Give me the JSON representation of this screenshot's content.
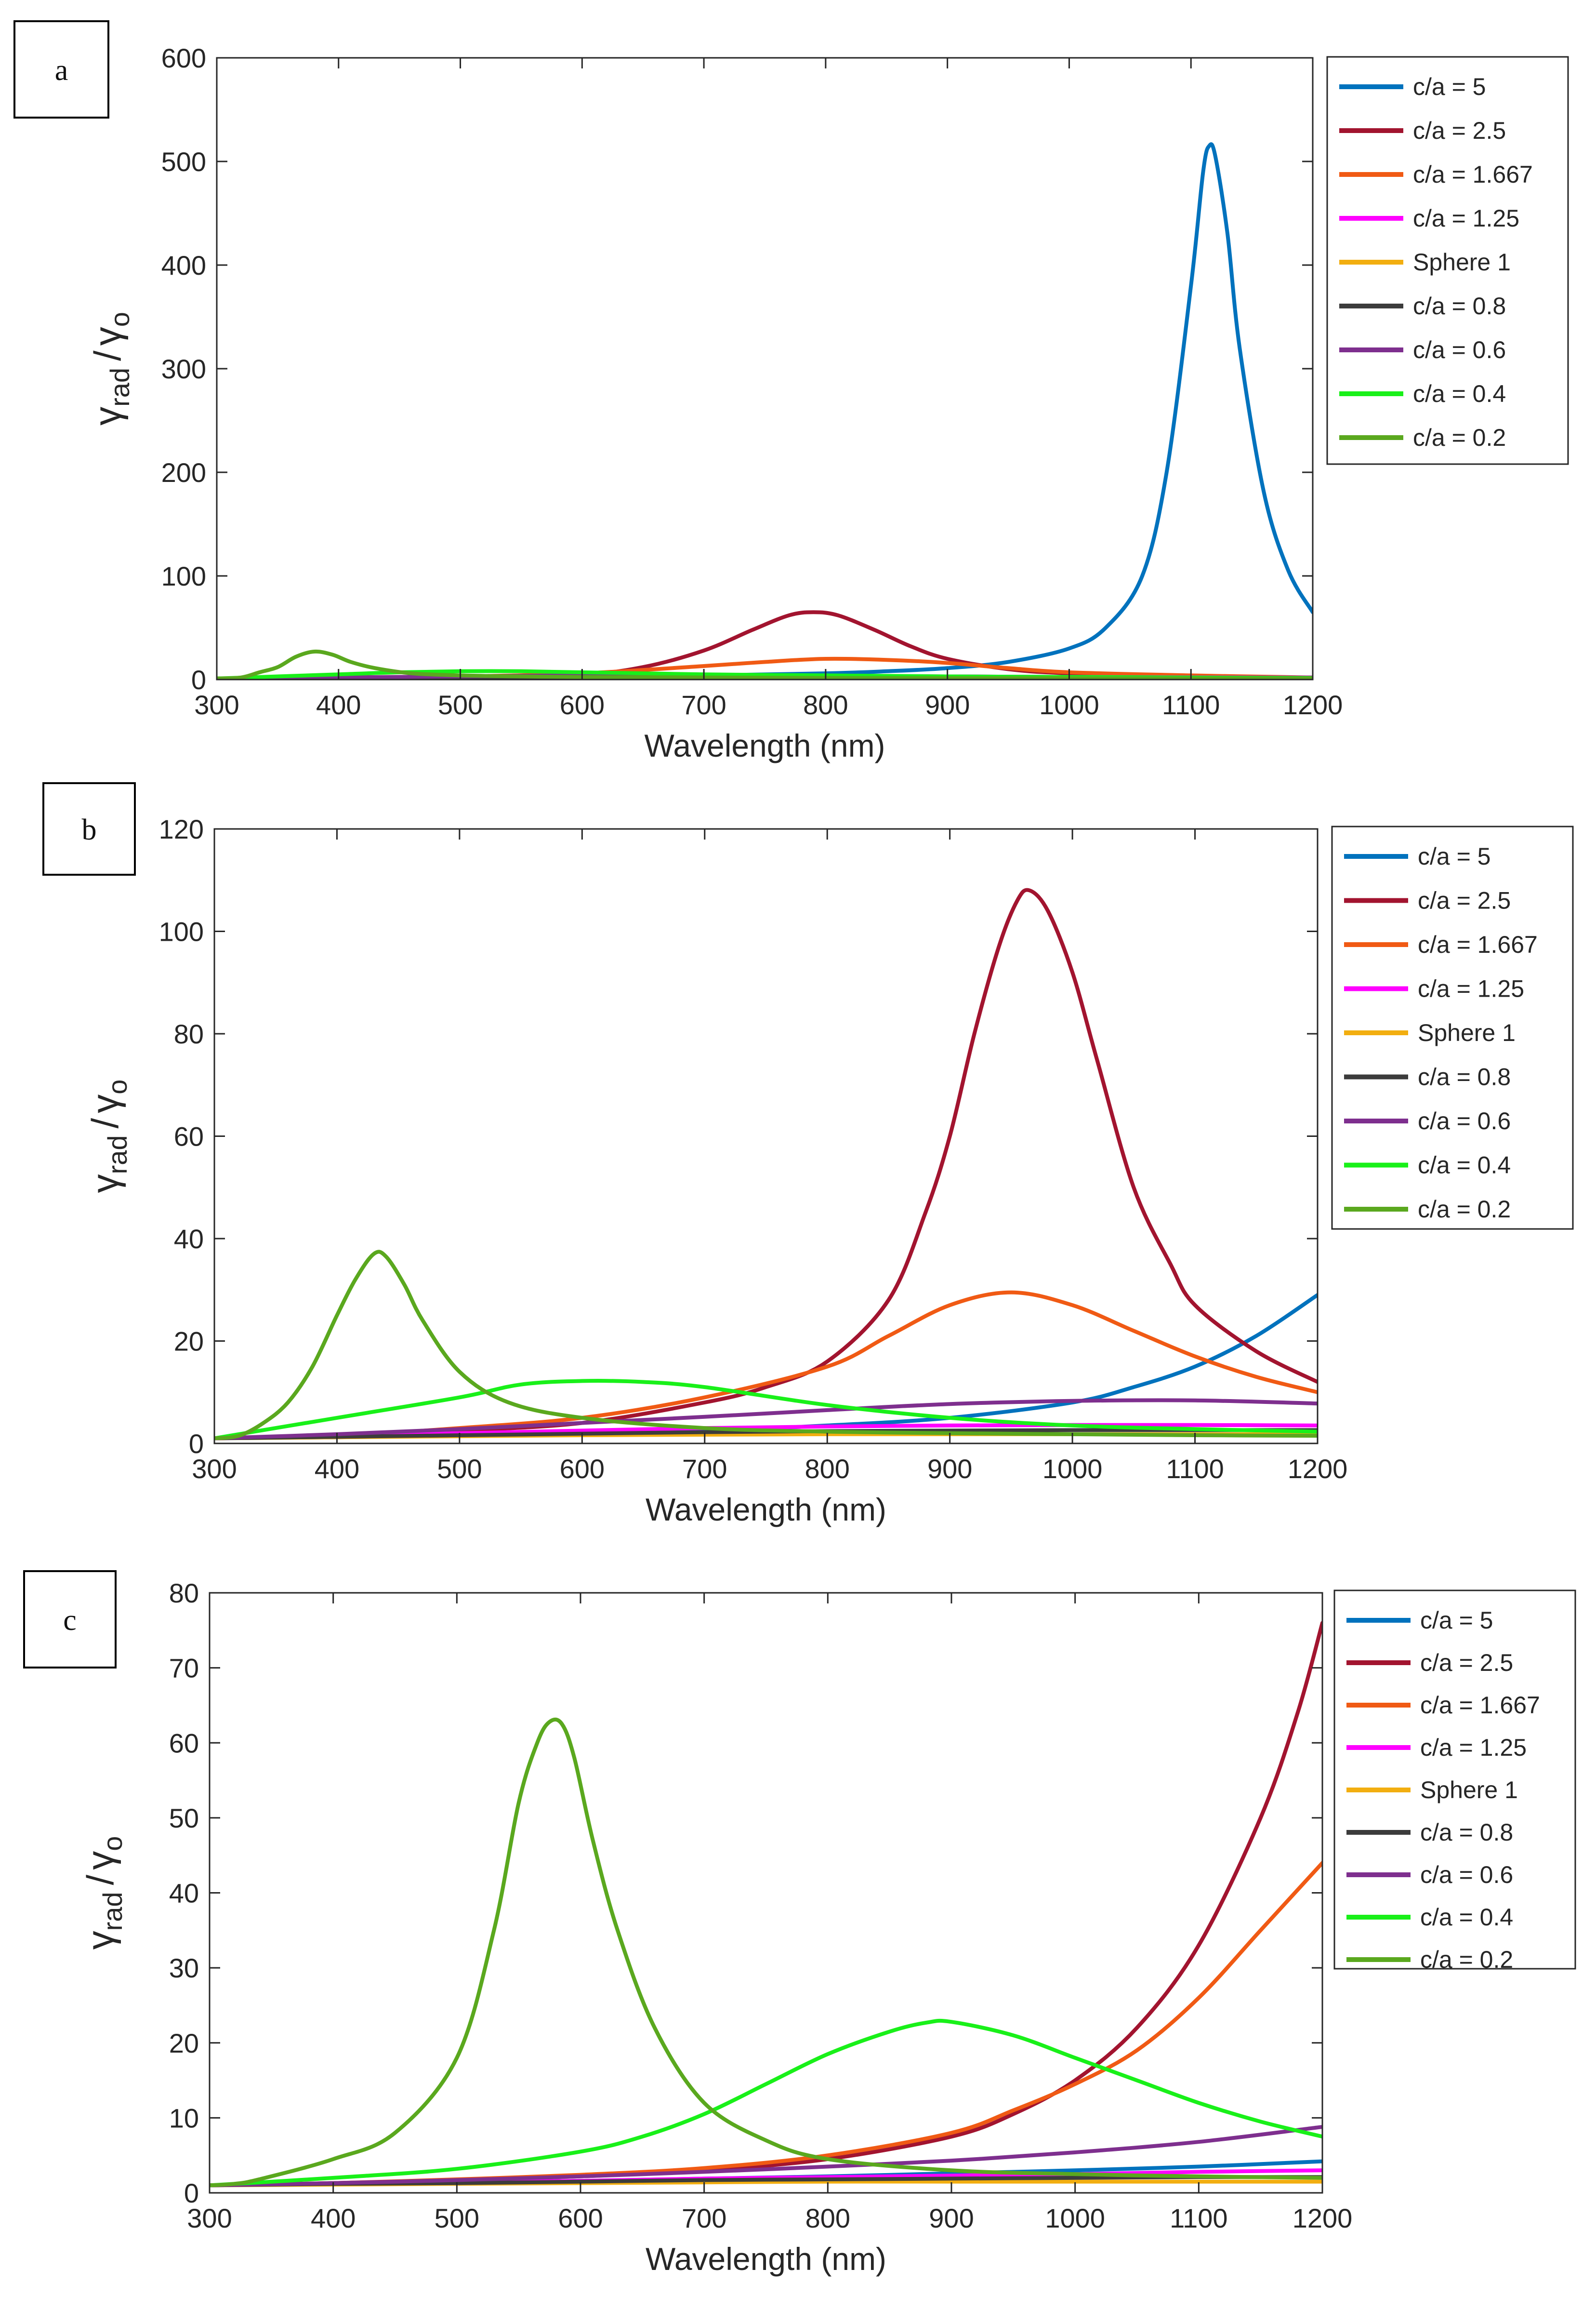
{
  "figure": {
    "colors": {
      "c/a = 5": "#0072BD",
      "c/a = 2.5": "#A2142F",
      "c/a = 1.667": "#F05A14",
      "c/a = 1.25": "#FF00FF",
      "Sphere 1": "#F2AE10",
      "c/a = 0.8": "#3C3C3C",
      "c/a = 0.6": "#7E2F8E",
      "c/a = 0.4": "#19F019",
      "c/a = 0.2": "#5AA81E"
    }
  },
  "chart_data": [
    {
      "panel": "a",
      "type": "line",
      "xlabel": "Wavelength (nm)",
      "ylabel_main": "γ",
      "ylabel_sub": "rad",
      "ylabel_slash": "/",
      "ylabel_den": "γ",
      "ylabel_den_sub": "o",
      "xlim": [
        300,
        1200
      ],
      "ylim": [
        0,
        600
      ],
      "xticks": [
        "300",
        "400",
        "500",
        "600",
        "700",
        "800",
        "900",
        "1000",
        "1100",
        "1200"
      ],
      "yticks": [
        "0",
        "100",
        "200",
        "300",
        "400",
        "500",
        "600"
      ],
      "legend": [
        "c/a = 5",
        "c/a = 2.5",
        "c/a = 1.667",
        "c/a = 1.25",
        "Sphere 1",
        "c/a = 0.8",
        "c/a = 0.6",
        "c/a = 0.4",
        "c/a = 0.2"
      ],
      "series": [
        {
          "name": "c/a = 5",
          "x": [
            300,
            400,
            500,
            600,
            700,
            800,
            850,
            900,
            950,
            1000,
            1030,
            1060,
            1080,
            1100,
            1110,
            1115,
            1120,
            1130,
            1140,
            1160,
            1180,
            1200
          ],
          "y": [
            0.5,
            1,
            1.5,
            2.5,
            4,
            6,
            8,
            11,
            17,
            30,
            50,
            100,
            200,
            380,
            490,
            515,
            505,
            430,
            320,
            180,
            105,
            65
          ]
        },
        {
          "name": "c/a = 2.5",
          "x": [
            300,
            400,
            500,
            600,
            650,
            700,
            740,
            770,
            790,
            810,
            840,
            870,
            900,
            950,
            1000,
            1100,
            1200
          ],
          "y": [
            0.5,
            1,
            2,
            5,
            12,
            28,
            48,
            62,
            65,
            62,
            48,
            32,
            20,
            10,
            6,
            3,
            2
          ]
        },
        {
          "name": "c/a = 1.667",
          "x": [
            300,
            400,
            500,
            600,
            700,
            750,
            800,
            850,
            900,
            950,
            1000,
            1100,
            1200
          ],
          "y": [
            1,
            2,
            3,
            6,
            13,
            17,
            20,
            19,
            16,
            11,
            7,
            4,
            2
          ]
        },
        {
          "name": "c/a = 1.25",
          "x": [
            300,
            400,
            500,
            600,
            700,
            800,
            900,
            1000,
            1100,
            1200
          ],
          "y": [
            1,
            2,
            2.5,
            3,
            3.5,
            3.5,
            3,
            2.5,
            2.2,
            2
          ]
        },
        {
          "name": "Sphere 1",
          "x": [
            300,
            400,
            500,
            600,
            700,
            800,
            900,
            1000,
            1100,
            1200
          ],
          "y": [
            1,
            1.5,
            1.8,
            2,
            2,
            1.8,
            1.6,
            1.5,
            1.4,
            1.3
          ]
        },
        {
          "name": "c/a = 0.8",
          "x": [
            300,
            400,
            500,
            600,
            700,
            800,
            900,
            1000,
            1100,
            1200
          ],
          "y": [
            1,
            1.5,
            2,
            2.5,
            2.5,
            2.3,
            2,
            1.8,
            1.6,
            1.5
          ]
        },
        {
          "name": "c/a = 0.6",
          "x": [
            300,
            400,
            500,
            600,
            700,
            800,
            900,
            1000,
            1100,
            1200
          ],
          "y": [
            1,
            2,
            3,
            4,
            4,
            3.5,
            3,
            2.5,
            2,
            1.8
          ]
        },
        {
          "name": "c/a = 0.4",
          "x": [
            300,
            350,
            400,
            450,
            500,
            550,
            600,
            650,
            700,
            800,
            900,
            1000,
            1100,
            1200
          ],
          "y": [
            1,
            3,
            5,
            7,
            8,
            8,
            7,
            6,
            5,
            4,
            3,
            2.5,
            2,
            1.5
          ]
        },
        {
          "name": "c/a = 0.2",
          "x": [
            300,
            320,
            335,
            350,
            365,
            380,
            395,
            410,
            430,
            460,
            500,
            550,
            600,
            700,
            800,
            900,
            1000,
            1100,
            1200
          ],
          "y": [
            1,
            2,
            7,
            12,
            22,
            27,
            24,
            17,
            11,
            6,
            4,
            3,
            2.5,
            2,
            1.5,
            1.3,
            1.2,
            1.1,
            1
          ]
        }
      ]
    },
    {
      "panel": "b",
      "type": "line",
      "xlabel": "Wavelength (nm)",
      "ylabel_main": "γ",
      "ylabel_sub": "rad",
      "ylabel_slash": "/",
      "ylabel_den": "γ",
      "ylabel_den_sub": "o",
      "xlim": [
        300,
        1200
      ],
      "ylim": [
        0,
        120
      ],
      "xticks": [
        "300",
        "400",
        "500",
        "600",
        "700",
        "800",
        "900",
        "1000",
        "1100",
        "1200"
      ],
      "yticks": [
        "0",
        "20",
        "40",
        "60",
        "80",
        "100",
        "120"
      ],
      "legend": [
        "c/a = 5",
        "c/a = 2.5",
        "c/a = 1.667",
        "c/a = 1.25",
        "Sphere 1",
        "c/a = 0.8",
        "c/a = 0.6",
        "c/a = 0.4",
        "c/a = 0.2"
      ],
      "series": [
        {
          "name": "c/a = 5",
          "x": [
            300,
            400,
            500,
            600,
            700,
            800,
            900,
            1000,
            1050,
            1100,
            1150,
            1200
          ],
          "y": [
            1,
            1.2,
            1.5,
            2,
            2.5,
            3.5,
            5,
            8,
            11,
            15,
            21,
            29
          ]
        },
        {
          "name": "c/a = 2.5",
          "x": [
            300,
            400,
            500,
            600,
            700,
            750,
            800,
            850,
            880,
            900,
            920,
            940,
            955,
            965,
            980,
            1000,
            1020,
            1050,
            1080,
            1100,
            1150,
            1200
          ],
          "y": [
            1,
            1.5,
            2.5,
            4,
            8,
            11,
            16,
            28,
            45,
            60,
            80,
            97,
            106,
            108,
            104,
            92,
            75,
            50,
            35,
            27,
            18,
            12
          ]
        },
        {
          "name": "c/a = 1.667",
          "x": [
            300,
            400,
            500,
            600,
            700,
            800,
            850,
            900,
            950,
            1000,
            1050,
            1100,
            1150,
            1200
          ],
          "y": [
            1,
            1.5,
            3,
            5,
            9,
            15,
            21,
            27,
            29.5,
            27,
            22,
            17,
            13,
            10
          ]
        },
        {
          "name": "c/a = 1.25",
          "x": [
            300,
            400,
            500,
            600,
            700,
            800,
            900,
            1000,
            1100,
            1200
          ],
          "y": [
            1,
            1.5,
            2,
            2.5,
            3,
            3.3,
            3.5,
            3.6,
            3.6,
            3.5
          ]
        },
        {
          "name": "Sphere 1",
          "x": [
            300,
            400,
            500,
            600,
            700,
            800,
            900,
            1000,
            1100,
            1200
          ],
          "y": [
            1,
            1.2,
            1.4,
            1.6,
            1.7,
            1.8,
            1.8,
            1.8,
            1.8,
            1.8
          ]
        },
        {
          "name": "c/a = 0.8",
          "x": [
            300,
            400,
            500,
            600,
            700,
            800,
            900,
            1000,
            1100,
            1200
          ],
          "y": [
            1,
            1.3,
            1.6,
            1.9,
            2.2,
            2.4,
            2.5,
            2.6,
            2.6,
            2.6
          ]
        },
        {
          "name": "c/a = 0.6",
          "x": [
            300,
            400,
            500,
            600,
            700,
            800,
            900,
            1000,
            1100,
            1200
          ],
          "y": [
            1,
            1.8,
            2.8,
            4,
            5.2,
            6.5,
            7.7,
            8.3,
            8.4,
            7.8
          ]
        },
        {
          "name": "c/a = 0.4",
          "x": [
            300,
            400,
            500,
            550,
            600,
            650,
            700,
            800,
            900,
            1000,
            1100,
            1200
          ],
          "y": [
            1,
            5,
            9,
            11.5,
            12.2,
            12,
            11,
            7.5,
            5,
            3.5,
            2.8,
            2.3
          ]
        },
        {
          "name": "c/a = 0.2",
          "x": [
            300,
            320,
            340,
            360,
            380,
            400,
            415,
            430,
            440,
            455,
            470,
            500,
            540,
            600,
            700,
            800,
            900,
            1000,
            1100,
            1200
          ],
          "y": [
            1,
            1.5,
            4,
            8,
            15,
            25,
            32,
            37,
            36.5,
            31,
            24,
            14,
            8,
            5,
            3,
            2.3,
            2,
            1.8,
            1.6,
            1.5
          ]
        }
      ]
    },
    {
      "panel": "c",
      "type": "line",
      "xlabel": "Wavelength (nm)",
      "ylabel_main": "γ",
      "ylabel_sub": "rad",
      "ylabel_slash": "/",
      "ylabel_den": "γ",
      "ylabel_den_sub": "o",
      "xlim": [
        300,
        1200
      ],
      "ylim": [
        0,
        80
      ],
      "xticks": [
        "300",
        "400",
        "500",
        "600",
        "700",
        "800",
        "900",
        "1000",
        "1100",
        "1200"
      ],
      "yticks": [
        "0",
        "10",
        "20",
        "30",
        "40",
        "50",
        "60",
        "70",
        "80"
      ],
      "legend": [
        "c/a = 5",
        "c/a = 2.5",
        "c/a = 1.667",
        "c/a = 1.25",
        "Sphere 1",
        "c/a = 0.8",
        "c/a = 0.6",
        "c/a = 0.4",
        "c/a = 0.2"
      ],
      "series": [
        {
          "name": "c/a = 5",
          "x": [
            300,
            400,
            500,
            600,
            700,
            800,
            900,
            1000,
            1100,
            1200
          ],
          "y": [
            1,
            1.2,
            1.4,
            1.6,
            1.9,
            2.2,
            2.6,
            3,
            3.5,
            4.2
          ]
        },
        {
          "name": "c/a = 2.5",
          "x": [
            300,
            400,
            500,
            600,
            700,
            800,
            900,
            950,
            1000,
            1050,
            1100,
            1150,
            1180,
            1200
          ],
          "y": [
            1,
            1.3,
            1.7,
            2.2,
            3,
            4.5,
            7.5,
            10.5,
            15,
            22,
            33,
            50,
            64,
            76
          ]
        },
        {
          "name": "c/a = 1.667",
          "x": [
            300,
            400,
            500,
            600,
            700,
            800,
            900,
            950,
            1000,
            1050,
            1100,
            1150,
            1200
          ],
          "y": [
            1,
            1.3,
            1.8,
            2.4,
            3.3,
            5,
            8,
            11,
            14.5,
            19,
            26,
            35,
            44
          ]
        },
        {
          "name": "c/a = 1.25",
          "x": [
            300,
            400,
            500,
            600,
            700,
            800,
            900,
            1000,
            1100,
            1200
          ],
          "y": [
            1,
            1.2,
            1.4,
            1.6,
            1.9,
            2.1,
            2.3,
            2.5,
            2.8,
            3
          ]
        },
        {
          "name": "Sphere 1",
          "x": [
            300,
            400,
            500,
            600,
            700,
            800,
            900,
            1000,
            1100,
            1200
          ],
          "y": [
            1,
            1.1,
            1.2,
            1.3,
            1.4,
            1.5,
            1.5,
            1.5,
            1.5,
            1.5
          ]
        },
        {
          "name": "c/a = 0.8",
          "x": [
            300,
            400,
            500,
            600,
            700,
            800,
            900,
            1000,
            1100,
            1200
          ],
          "y": [
            1,
            1.2,
            1.3,
            1.5,
            1.7,
            1.8,
            1.9,
            2,
            2.1,
            2.1
          ]
        },
        {
          "name": "c/a = 0.6",
          "x": [
            300,
            400,
            500,
            600,
            700,
            800,
            900,
            1000,
            1100,
            1200
          ],
          "y": [
            1,
            1.3,
            1.7,
            2.2,
            2.8,
            3.5,
            4.3,
            5.4,
            6.8,
            8.8
          ]
        },
        {
          "name": "c/a = 0.4",
          "x": [
            300,
            400,
            500,
            600,
            650,
            700,
            750,
            800,
            850,
            880,
            900,
            950,
            1000,
            1050,
            1100,
            1150,
            1200
          ],
          "y": [
            1,
            2,
            3.2,
            5.5,
            7.5,
            10.5,
            14.5,
            18.5,
            21.5,
            22.7,
            22.8,
            21,
            18,
            15,
            12,
            9.5,
            7.5
          ]
        },
        {
          "name": "c/a = 0.2",
          "x": [
            300,
            320,
            340,
            400,
            450,
            500,
            530,
            550,
            565,
            575,
            585,
            595,
            610,
            630,
            660,
            700,
            750,
            800,
            900,
            1000,
            1100,
            1200
          ],
          "y": [
            1,
            1.2,
            1.8,
            4.5,
            8,
            18,
            35,
            52,
            60,
            62.8,
            62.5,
            58,
            47,
            35,
            22,
            12,
            7,
            4.5,
            3,
            2.5,
            2.2,
            2
          ]
        }
      ]
    }
  ]
}
